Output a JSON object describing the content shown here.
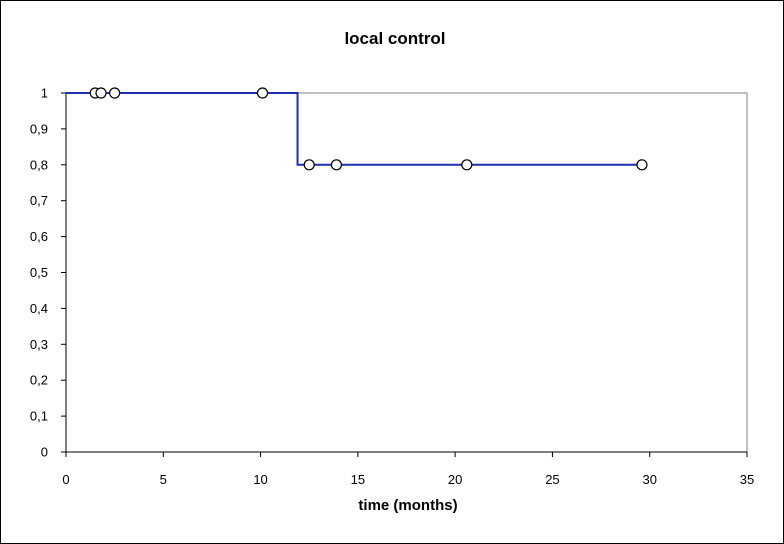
{
  "chart_data": {
    "type": "line",
    "title": "local control",
    "xlabel": "time (months)",
    "ylabel": "",
    "xlim": [
      0,
      35
    ],
    "ylim": [
      0,
      1
    ],
    "x_ticks": [
      0,
      5,
      10,
      15,
      20,
      25,
      30,
      35
    ],
    "x_tick_labels": [
      "0",
      "5",
      "10",
      "15",
      "20",
      "25",
      "30",
      "35"
    ],
    "y_ticks": [
      0,
      0.1,
      0.2,
      0.3,
      0.4,
      0.5,
      0.6,
      0.7,
      0.8,
      0.9,
      1
    ],
    "y_tick_labels": [
      "0",
      "0,1",
      "0,2",
      "0,3",
      "0,4",
      "0,5",
      "0,6",
      "0,7",
      "0,8",
      "0,9",
      "1"
    ],
    "grid": false,
    "series": [
      {
        "step_points": [
          [
            0,
            1
          ],
          [
            11.9,
            1
          ],
          [
            11.9,
            0.8
          ],
          [
            29.6,
            0.8
          ]
        ],
        "censored": [
          [
            1.5,
            1
          ],
          [
            1.8,
            1
          ],
          [
            2.5,
            1
          ],
          [
            10.1,
            1
          ],
          [
            12.5,
            0.8
          ],
          [
            13.9,
            0.8
          ],
          [
            20.6,
            0.8
          ],
          [
            29.6,
            0.8
          ]
        ],
        "color": "#1f2fb0"
      }
    ]
  }
}
